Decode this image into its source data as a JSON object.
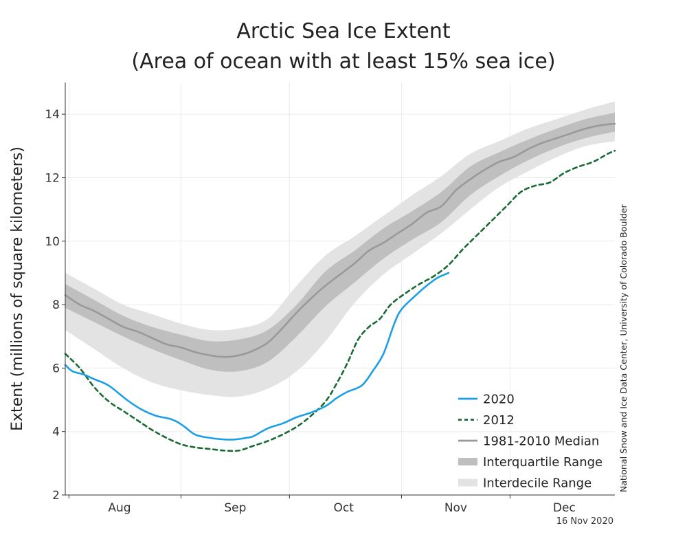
{
  "chart_data": {
    "type": "line",
    "title": "Arctic Sea Ice Extent",
    "subtitle": "(Area of ocean with at least 15% sea ice)",
    "xlabel": "",
    "ylabel": "Extent (millions of square kilometers)",
    "x_unit": "day of year",
    "xlim": [
      212,
      364
    ],
    "ylim": [
      2,
      15
    ],
    "yticks": [
      2,
      4,
      6,
      8,
      10,
      12,
      14
    ],
    "x_tick_days": [
      213,
      244,
      274,
      305,
      335
    ],
    "x_labels": [
      {
        "label": "Aug",
        "day": 227
      },
      {
        "label": "Sep",
        "day": 259
      },
      {
        "label": "Oct",
        "day": 289
      },
      {
        "label": "Nov",
        "day": 320
      },
      {
        "label": "Dec",
        "day": 350
      }
    ],
    "grid": true,
    "legend_position": "bottom-right",
    "source": "National Snow and Ice Data Center, University of Colorado Boulder",
    "date_stamp": "16 Nov 2020",
    "series": [
      {
        "name": "2020",
        "kind": "line",
        "color": "#1b9ee8",
        "dash": "",
        "x": [
          212,
          214,
          217,
          220,
          224,
          229,
          233,
          237,
          241,
          243,
          245,
          248,
          252,
          256,
          259,
          262,
          264,
          268,
          272,
          276,
          280,
          284,
          287,
          290,
          294,
          297,
          300,
          303,
          305,
          309,
          312,
          315,
          317,
          318
        ],
        "y": [
          6.1,
          5.9,
          5.8,
          5.65,
          5.45,
          5.0,
          4.7,
          4.5,
          4.4,
          4.3,
          4.15,
          3.9,
          3.8,
          3.75,
          3.75,
          3.8,
          3.85,
          4.1,
          4.25,
          4.45,
          4.6,
          4.8,
          5.05,
          5.25,
          5.45,
          5.9,
          6.45,
          7.4,
          7.85,
          8.3,
          8.6,
          8.85,
          8.95,
          9.0
        ]
      },
      {
        "name": "2012",
        "kind": "line",
        "color": "#1a6a35",
        "dash": "6,5",
        "x": [
          212,
          216,
          220,
          224,
          228,
          232,
          236,
          240,
          244,
          248,
          252,
          256,
          260,
          264,
          268,
          272,
          276,
          280,
          284,
          287,
          290,
          293,
          296,
          299,
          302,
          306,
          310,
          314,
          318,
          322,
          326,
          330,
          334,
          338,
          342,
          346,
          350,
          354,
          358,
          362,
          364
        ],
        "y": [
          6.45,
          6.0,
          5.4,
          4.95,
          4.65,
          4.35,
          4.05,
          3.8,
          3.6,
          3.5,
          3.45,
          3.4,
          3.4,
          3.55,
          3.7,
          3.9,
          4.15,
          4.5,
          4.95,
          5.5,
          6.15,
          6.9,
          7.3,
          7.55,
          8.0,
          8.35,
          8.65,
          8.9,
          9.25,
          9.75,
          10.2,
          10.65,
          11.1,
          11.55,
          11.75,
          11.85,
          12.15,
          12.35,
          12.5,
          12.75,
          12.85
        ]
      },
      {
        "name": "1981-2010 Median",
        "kind": "line",
        "color": "#999999",
        "dash": "",
        "x": [
          212,
          216,
          220,
          224,
          228,
          232,
          236,
          240,
          244,
          248,
          252,
          256,
          260,
          264,
          268,
          272,
          276,
          280,
          284,
          288,
          292,
          296,
          300,
          304,
          308,
          312,
          316,
          320,
          324,
          328,
          332,
          336,
          340,
          344,
          348,
          352,
          356,
          360,
          364
        ],
        "y": [
          8.3,
          8.0,
          7.8,
          7.55,
          7.3,
          7.15,
          6.95,
          6.75,
          6.65,
          6.5,
          6.4,
          6.35,
          6.4,
          6.55,
          6.8,
          7.25,
          7.75,
          8.2,
          8.6,
          8.95,
          9.3,
          9.7,
          9.95,
          10.25,
          10.55,
          10.9,
          11.1,
          11.6,
          11.95,
          12.25,
          12.5,
          12.65,
          12.9,
          13.1,
          13.25,
          13.4,
          13.55,
          13.65,
          13.7
        ]
      },
      {
        "name": "Interquartile Range",
        "kind": "band",
        "color": "#bfbfbf",
        "x": [
          212,
          220,
          228,
          236,
          244,
          252,
          260,
          268,
          276,
          284,
          292,
          300,
          308,
          316,
          324,
          332,
          340,
          348,
          356,
          364
        ],
        "low": [
          7.9,
          7.45,
          7.0,
          6.6,
          6.25,
          5.95,
          5.9,
          6.2,
          7.0,
          7.95,
          8.7,
          9.45,
          10.05,
          10.6,
          11.45,
          12.05,
          12.55,
          12.95,
          13.25,
          13.45
        ],
        "high": [
          8.65,
          8.15,
          7.65,
          7.3,
          7.05,
          6.85,
          6.9,
          7.2,
          8.0,
          9.05,
          9.7,
          10.4,
          10.95,
          11.55,
          12.35,
          12.8,
          13.2,
          13.55,
          13.85,
          14.05
        ]
      },
      {
        "name": "Interdecile Range",
        "kind": "band",
        "color": "#e3e3e3",
        "x": [
          212,
          220,
          228,
          236,
          244,
          252,
          260,
          268,
          276,
          284,
          292,
          300,
          308,
          316,
          324,
          332,
          340,
          348,
          356,
          364
        ],
        "low": [
          7.2,
          6.6,
          6.0,
          5.55,
          5.3,
          5.15,
          5.1,
          5.35,
          5.9,
          6.85,
          8.05,
          8.95,
          9.6,
          10.25,
          11.0,
          11.7,
          12.2,
          12.65,
          13.0,
          13.15
        ],
        "high": [
          9.0,
          8.5,
          8.0,
          7.7,
          7.4,
          7.2,
          7.25,
          7.55,
          8.6,
          9.55,
          10.15,
          10.8,
          11.45,
          12.05,
          12.75,
          13.15,
          13.55,
          13.85,
          14.15,
          14.4
        ]
      }
    ]
  }
}
